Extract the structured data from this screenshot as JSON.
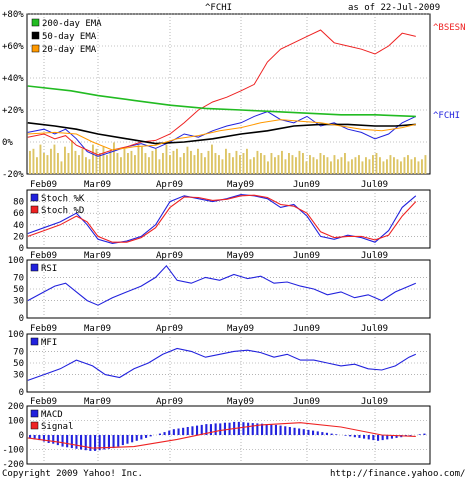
{
  "header": {
    "symbol": "^FCHI",
    "date_text": "as of 22-Jul-2009"
  },
  "footer": {
    "copyright": "Copyright 2009 Yahoo! Inc.",
    "url": "http://finance.yahoo.com/"
  },
  "colors": {
    "fchi": "#2222dd",
    "bsesn": "#ee2222",
    "ema200": "#22bb22",
    "ema50": "#000000",
    "ema20": "#ff9900",
    "volume": "#ddc566",
    "stoch_k": "#2222dd",
    "stoch_d": "#ee2222",
    "rsi": "#2222dd",
    "mfi": "#2222dd",
    "macd": "#2222dd",
    "signal": "#ee2222"
  },
  "chart_data": [
    {
      "type": "line",
      "panel": "price",
      "ylabel_ticks": [
        "+80%",
        "+60%",
        "+40%",
        "+20%",
        "0%",
        "-20%"
      ],
      "ylim": [
        -20,
        80
      ],
      "x_labels": [
        "Feb09",
        "Mar09",
        "Apr09",
        "May09",
        "Jun09",
        "Jul09"
      ],
      "x_range_months": [
        0,
        5.7
      ],
      "series_labels_right": {
        "bsesn": "^BSESN",
        "fchi": "^FCHI"
      },
      "legend": [
        {
          "key": "ema200",
          "label": "200-day EMA"
        },
        {
          "key": "ema50",
          "label": "50-day EMA"
        },
        {
          "key": "ema20",
          "label": "20-day EMA"
        }
      ],
      "series": [
        {
          "key": "fchi",
          "x": [
            -0.3,
            0,
            0.2,
            0.4,
            0.6,
            0.8,
            1.0,
            1.2,
            1.4,
            1.6,
            1.8,
            2.0,
            2.2,
            2.4,
            2.6,
            2.8,
            3.0,
            3.2,
            3.4,
            3.6,
            3.8,
            4.0,
            4.2,
            4.4,
            4.6,
            4.8,
            5.0,
            5.2,
            5.4,
            5.6
          ],
          "values": [
            6,
            8,
            5,
            8,
            2,
            -6,
            -9,
            -6,
            -3,
            -1,
            -4,
            0,
            5,
            3,
            7,
            10,
            12,
            16,
            19,
            14,
            12,
            16,
            10,
            12,
            8,
            6,
            2,
            5,
            12,
            16
          ]
        },
        {
          "key": "bsesn",
          "x": [
            -0.3,
            0,
            0.2,
            0.4,
            0.6,
            0.8,
            1.0,
            1.2,
            1.4,
            1.6,
            1.8,
            2.0,
            2.2,
            2.4,
            2.6,
            2.8,
            3.0,
            3.2,
            3.4,
            3.6,
            3.8,
            4.0,
            4.2,
            4.4,
            4.6,
            4.8,
            5.0,
            5.2,
            5.4,
            5.6
          ],
          "values": [
            3,
            5,
            2,
            4,
            -2,
            -5,
            -8,
            -5,
            -3,
            0,
            1,
            5,
            12,
            20,
            25,
            28,
            32,
            36,
            50,
            58,
            62,
            66,
            70,
            62,
            60,
            58,
            55,
            60,
            68,
            66
          ]
        },
        {
          "key": "ema200",
          "x": [
            -0.3,
            0.5,
            1.0,
            1.5,
            2.0,
            2.5,
            3.0,
            3.5,
            4.0,
            4.5,
            5.0,
            5.6
          ],
          "values": [
            35,
            32,
            29,
            26,
            23,
            21,
            20,
            19,
            18,
            17,
            17,
            16
          ]
        },
        {
          "key": "ema50",
          "x": [
            -0.3,
            0.2,
            0.6,
            1.0,
            1.4,
            1.8,
            2.2,
            2.6,
            3.0,
            3.4,
            3.8,
            4.2,
            4.6,
            5.0,
            5.3,
            5.6
          ],
          "values": [
            12,
            10,
            8,
            5,
            2,
            -1,
            0,
            2,
            5,
            7,
            10,
            11,
            11,
            10,
            10,
            11
          ]
        },
        {
          "key": "ema20",
          "x": [
            -0.3,
            0.2,
            0.6,
            0.9,
            1.2,
            1.5,
            1.8,
            2.1,
            2.4,
            2.7,
            3.0,
            3.3,
            3.6,
            3.9,
            4.2,
            4.5,
            4.8,
            5.1,
            5.4,
            5.6
          ],
          "values": [
            5,
            6,
            5,
            0,
            -5,
            -3,
            -2,
            2,
            4,
            7,
            9,
            12,
            14,
            13,
            12,
            10,
            8,
            7,
            9,
            11
          ]
        }
      ],
      "volume": [
        0.55,
        0.6,
        0.4,
        0.7,
        0.5,
        0.45,
        0.6,
        0.7,
        0.5,
        0.3,
        0.65,
        0.5,
        0.8,
        0.55,
        0.45,
        0.6,
        0.4,
        0.35,
        0.7,
        0.6,
        0.5,
        0.65,
        0.45,
        0.55,
        0.75,
        0.5,
        0.4,
        0.6,
        0.5,
        0.55,
        0.45,
        0.7,
        0.65,
        0.5,
        0.4,
        0.55,
        0.6,
        0.35,
        0.5,
        0.7,
        0.45,
        0.55,
        0.6,
        0.4,
        0.5,
        0.65,
        0.55,
        0.45,
        0.6,
        0.5,
        0.4,
        0.55,
        0.7,
        0.5,
        0.45,
        0.35,
        0.6,
        0.5,
        0.4,
        0.55,
        0.45,
        0.5,
        0.6,
        0.35,
        0.4,
        0.55,
        0.5,
        0.45,
        0.3,
        0.5,
        0.4,
        0.45,
        0.55,
        0.35,
        0.5,
        0.45,
        0.4,
        0.55,
        0.5,
        0.3,
        0.45,
        0.4,
        0.35,
        0.5,
        0.45,
        0.4,
        0.3,
        0.45,
        0.35,
        0.4,
        0.5,
        0.3,
        0.35,
        0.4,
        0.45,
        0.3,
        0.4,
        0.35,
        0.45,
        0.5,
        0.4,
        0.3,
        0.35,
        0.45,
        0.4,
        0.35,
        0.3,
        0.4,
        0.45,
        0.35,
        0.4,
        0.3,
        0.35,
        0.45
      ]
    },
    {
      "type": "line",
      "panel": "stochastic",
      "ylim": [
        0,
        100
      ],
      "ytick_labels": [
        "80",
        "60",
        "40",
        "20",
        "0"
      ],
      "x_labels": [
        "Feb09",
        "Mar09",
        "Apr09",
        "May09",
        "Jun09",
        "Jul09"
      ],
      "legend": [
        {
          "key": "stoch_k",
          "label": "Stoch %K"
        },
        {
          "key": "stoch_d",
          "label": "Stoch %D"
        }
      ],
      "series": [
        {
          "key": "stoch_k",
          "x": [
            -0.3,
            0,
            0.3,
            0.6,
            0.8,
            1.0,
            1.2,
            1.4,
            1.6,
            1.8,
            2.0,
            2.2,
            2.4,
            2.6,
            2.8,
            3.0,
            3.2,
            3.4,
            3.6,
            3.8,
            4.0,
            4.2,
            4.4,
            4.6,
            4.8,
            5.0,
            5.2,
            5.4,
            5.6
          ],
          "values": [
            25,
            35,
            45,
            60,
            40,
            15,
            8,
            12,
            20,
            40,
            80,
            90,
            85,
            80,
            85,
            92,
            90,
            85,
            70,
            75,
            55,
            20,
            15,
            22,
            18,
            10,
            30,
            70,
            90
          ]
        },
        {
          "key": "stoch_d",
          "x": [
            -0.3,
            0,
            0.3,
            0.6,
            0.8,
            1.0,
            1.2,
            1.4,
            1.6,
            1.8,
            2.0,
            2.2,
            2.4,
            2.6,
            2.8,
            3.0,
            3.2,
            3.4,
            3.6,
            3.8,
            4.0,
            4.2,
            4.4,
            4.6,
            4.8,
            5.0,
            5.2,
            5.4,
            5.6
          ],
          "values": [
            20,
            30,
            40,
            55,
            45,
            20,
            10,
            10,
            18,
            35,
            70,
            88,
            87,
            82,
            84,
            90,
            91,
            87,
            75,
            72,
            60,
            28,
            18,
            20,
            20,
            14,
            22,
            55,
            80
          ]
        }
      ]
    },
    {
      "type": "line",
      "panel": "rsi",
      "ylim": [
        0,
        100
      ],
      "ytick_labels": [
        "100",
        "70",
        "50",
        "30",
        "0"
      ],
      "x_labels": [
        "Feb09",
        "Mar09",
        "Apr09",
        "May09",
        "Jun09",
        "Jul09"
      ],
      "legend": [
        {
          "key": "rsi",
          "label": "RSI"
        }
      ],
      "series": [
        {
          "key": "rsi",
          "x": [
            -0.3,
            0,
            0.2,
            0.4,
            0.6,
            0.8,
            1.0,
            1.2,
            1.4,
            1.6,
            1.8,
            1.95,
            2.1,
            2.3,
            2.5,
            2.7,
            2.9,
            3.1,
            3.3,
            3.5,
            3.7,
            3.9,
            4.1,
            4.3,
            4.5,
            4.7,
            4.9,
            5.1,
            5.3,
            5.5,
            5.6
          ],
          "values": [
            30,
            45,
            55,
            60,
            45,
            30,
            22,
            35,
            45,
            55,
            70,
            90,
            65,
            60,
            70,
            65,
            75,
            68,
            72,
            60,
            62,
            55,
            50,
            40,
            45,
            35,
            40,
            30,
            45,
            55,
            60
          ]
        }
      ]
    },
    {
      "type": "line",
      "panel": "mfi",
      "ylim": [
        0,
        100
      ],
      "ytick_labels": [
        "100",
        "70",
        "50",
        "30",
        "0"
      ],
      "x_labels": [
        "Feb09",
        "Mar09",
        "Apr09",
        "May09",
        "Jun09",
        "Jul09"
      ],
      "legend": [
        {
          "key": "mfi",
          "label": "MFI"
        }
      ],
      "series": [
        {
          "key": "mfi",
          "x": [
            -0.3,
            0,
            0.3,
            0.6,
            0.9,
            1.1,
            1.3,
            1.5,
            1.7,
            1.9,
            2.1,
            2.3,
            2.5,
            2.7,
            2.9,
            3.1,
            3.3,
            3.5,
            3.7,
            3.9,
            4.1,
            4.3,
            4.5,
            4.7,
            4.9,
            5.1,
            5.3,
            5.5,
            5.6
          ],
          "values": [
            20,
            30,
            40,
            55,
            45,
            30,
            25,
            40,
            50,
            65,
            75,
            70,
            60,
            65,
            70,
            72,
            68,
            60,
            65,
            55,
            55,
            50,
            45,
            48,
            40,
            38,
            45,
            60,
            65
          ]
        }
      ]
    },
    {
      "type": "bar",
      "panel": "macd",
      "ylim": [
        -200,
        200
      ],
      "ytick_labels": [
        "200",
        "100",
        "0",
        "-100",
        "-200"
      ],
      "x_labels": [
        "Feb09",
        "Mar09",
        "Apr09",
        "May09",
        "Jun09",
        "Jul09"
      ],
      "legend": [
        {
          "key": "macd",
          "label": "MACD"
        },
        {
          "key": "signal",
          "label": "Signal"
        }
      ],
      "histogram": [
        -20,
        -30,
        -35,
        -45,
        -55,
        -60,
        -70,
        -80,
        -85,
        -90,
        -95,
        -100,
        -105,
        -110,
        -110,
        -105,
        -100,
        -95,
        -90,
        -80,
        -70,
        -60,
        -50,
        -40,
        -30,
        -20,
        -10,
        0,
        10,
        20,
        30,
        40,
        45,
        50,
        55,
        60,
        65,
        70,
        75,
        75,
        80,
        80,
        85,
        85,
        90,
        90,
        88,
        85,
        82,
        80,
        78,
        75,
        72,
        70,
        65,
        60,
        55,
        50,
        45,
        40,
        35,
        30,
        25,
        20,
        15,
        10,
        5,
        0,
        -5,
        -10,
        -15,
        -20,
        -25,
        -30,
        -35,
        -40,
        -35,
        -30,
        -25,
        -20,
        -15,
        -10,
        -5,
        0,
        5,
        10
      ],
      "signal": {
        "x": [
          -0.3,
          0.3,
          0.9,
          1.5,
          2.1,
          2.7,
          3.3,
          3.9,
          4.5,
          5.1,
          5.6
        ],
        "values": [
          -20,
          -50,
          -90,
          -80,
          -30,
          30,
          70,
          85,
          55,
          0,
          -10
        ]
      }
    }
  ]
}
